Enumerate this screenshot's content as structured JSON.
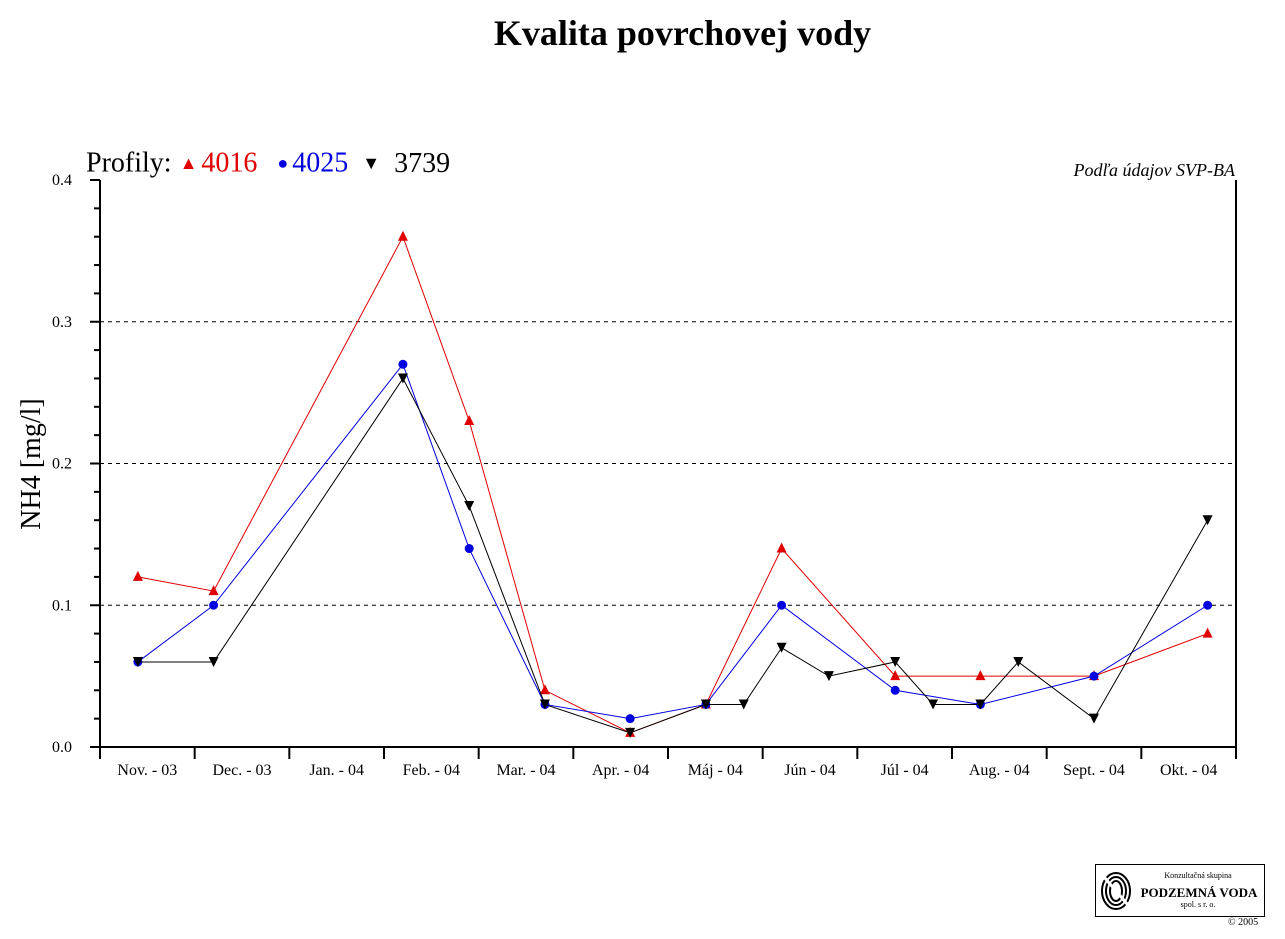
{
  "title": "Kvalita povrchovej vody",
  "legend": {
    "prefix": "Profily:",
    "entries": [
      {
        "label": "4016",
        "color": "#e00000",
        "marker": "triangle-up"
      },
      {
        "label": "4025",
        "color": "#0000e0",
        "marker": "circle"
      },
      {
        "label": "3739",
        "color": "#000000",
        "marker": "triangle-down"
      }
    ]
  },
  "source_note": "Podľa údajov SVP-BA",
  "logo": {
    "line1": "Konzultačná skupina",
    "line2": "PODZEMNÁ VODA",
    "line3": "spol. s r. o.",
    "copyright": "© 2005"
  },
  "chart_data": {
    "type": "line",
    "title": "Kvalita povrchovej vody",
    "ylabel": "NH4 [mg/l]",
    "xlabel": "",
    "ylim": [
      0.0,
      0.4
    ],
    "yticks": [
      "0.0",
      "0.1",
      "0.2",
      "0.3",
      "0.4"
    ],
    "grid": "horizontal dashed at 0.1, 0.2, 0.3",
    "categories": [
      "Nov. - 03",
      "Dec. - 03",
      "Jan. - 04",
      "Feb. - 04",
      "Mar. - 04",
      "Apr. - 04",
      "Máj - 04",
      "Jún - 04",
      "Júl - 04",
      "Aug. - 04",
      "Sept. - 04",
      "Okt. - 04"
    ],
    "series": [
      {
        "name": "4016",
        "color": "#e00000",
        "marker": "triangle-up",
        "points": [
          [
            0.4,
            0.12
          ],
          [
            1.2,
            0.11
          ],
          [
            3.2,
            0.36
          ],
          [
            3.9,
            0.23
          ],
          [
            4.7,
            0.04
          ],
          [
            5.6,
            0.01
          ],
          [
            6.4,
            0.03
          ],
          [
            7.2,
            0.14
          ],
          [
            8.4,
            0.05
          ],
          [
            9.3,
            0.05
          ],
          [
            10.5,
            0.05
          ],
          [
            11.7,
            0.08
          ]
        ]
      },
      {
        "name": "4025",
        "color": "#0000e0",
        "marker": "circle",
        "points": [
          [
            0.4,
            0.06
          ],
          [
            1.2,
            0.1
          ],
          [
            3.2,
            0.27
          ],
          [
            3.9,
            0.14
          ],
          [
            4.7,
            0.03
          ],
          [
            5.6,
            0.02
          ],
          [
            6.4,
            0.03
          ],
          [
            7.2,
            0.1
          ],
          [
            8.4,
            0.04
          ],
          [
            9.3,
            0.03
          ],
          [
            10.5,
            0.05
          ],
          [
            11.7,
            0.1
          ]
        ]
      },
      {
        "name": "3739",
        "color": "#000000",
        "marker": "triangle-down",
        "points": [
          [
            0.4,
            0.06
          ],
          [
            1.2,
            0.06
          ],
          [
            3.2,
            0.26
          ],
          [
            3.9,
            0.17
          ],
          [
            4.7,
            0.03
          ],
          [
            5.6,
            0.01
          ],
          [
            6.4,
            0.03
          ],
          [
            6.8,
            0.03
          ],
          [
            7.2,
            0.07
          ],
          [
            7.7,
            0.05
          ],
          [
            8.4,
            0.06
          ],
          [
            8.8,
            0.03
          ],
          [
            9.3,
            0.03
          ],
          [
            9.7,
            0.06
          ],
          [
            10.5,
            0.02
          ],
          [
            11.7,
            0.16
          ]
        ]
      }
    ]
  }
}
